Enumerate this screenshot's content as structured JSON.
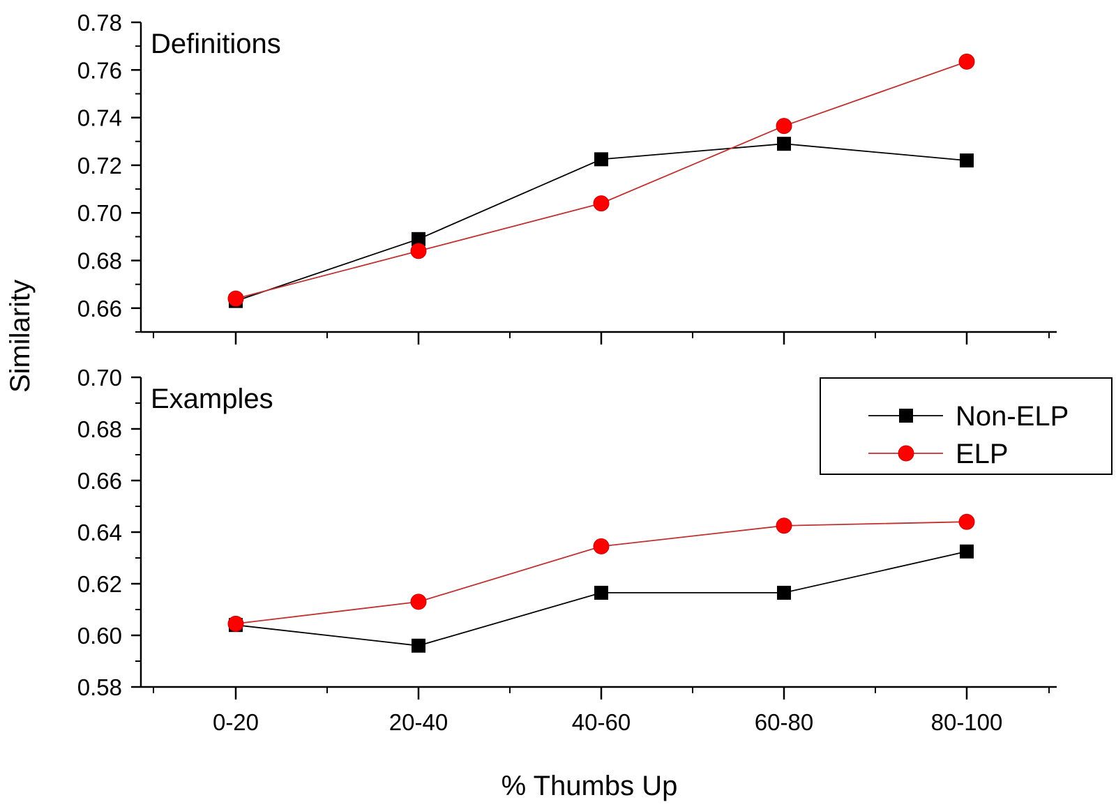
{
  "chart_data": {
    "type": "line",
    "xlabel": "% Thumbs Up",
    "ylabel": "Similarity",
    "categories": [
      "0-20",
      "20-40",
      "40-60",
      "60-80",
      "80-100"
    ],
    "legend": {
      "placement": "right, bottom panel",
      "entries": [
        {
          "name": "Non-ELP",
          "marker": "square",
          "color": "#000000"
        },
        {
          "name": "ELP",
          "marker": "circle",
          "color": "#ff0000"
        }
      ]
    },
    "panels": [
      {
        "title": "Definitions",
        "ylim": [
          0.65,
          0.78
        ],
        "yticks": [
          "0.66",
          "0.68",
          "0.70",
          "0.72",
          "0.74",
          "0.76",
          "0.78"
        ],
        "series": [
          {
            "name": "Non-ELP",
            "values": [
              0.663,
              0.689,
              0.7225,
              0.729,
              0.722
            ]
          },
          {
            "name": "ELP",
            "values": [
              0.664,
              0.684,
              0.704,
              0.7365,
              0.7635
            ]
          }
        ]
      },
      {
        "title": "Examples",
        "ylim": [
          0.58,
          0.7
        ],
        "yticks": [
          "0.58",
          "0.60",
          "0.62",
          "0.64",
          "0.66",
          "0.68",
          "0.70"
        ],
        "series": [
          {
            "name": "Non-ELP",
            "values": [
              0.604,
              0.596,
              0.6165,
              0.6165,
              0.6325
            ]
          },
          {
            "name": "ELP",
            "values": [
              0.6045,
              0.613,
              0.6345,
              0.6425,
              0.644
            ]
          }
        ]
      }
    ],
    "colors": {
      "non_elp": "#000000",
      "elp": "#ff0000",
      "elp_line": "#c0302f"
    }
  }
}
